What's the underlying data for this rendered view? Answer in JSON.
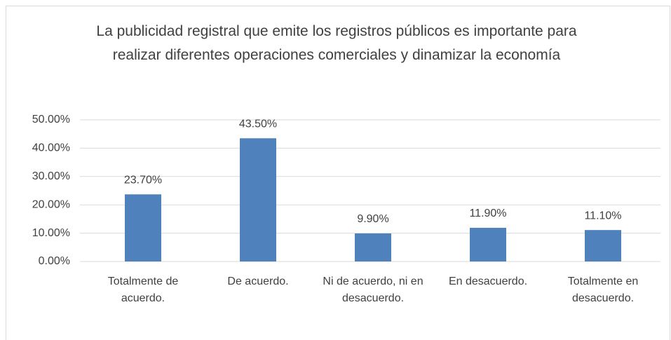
{
  "chart_data": {
    "type": "bar",
    "title": "La publicidad registral que emite los registros públicos es importante para realizar diferentes operaciones comerciales y dinamizar la economía",
    "categories": [
      "Totalmente de acuerdo.",
      "De acuerdo.",
      "Ni de acuerdo, ni en desacuerdo.",
      "En desacuerdo.",
      "Totalmente en desacuerdo."
    ],
    "values": [
      23.7,
      43.5,
      9.9,
      11.9,
      11.1
    ],
    "value_labels": [
      "23.70%",
      "43.50%",
      "9.90%",
      "11.90%",
      "11.10%"
    ],
    "color": "#4f81bd",
    "ylim": [
      0,
      50
    ],
    "yticks": [
      {
        "value": 0,
        "label": "0.00%"
      },
      {
        "value": 10,
        "label": "10.00%"
      },
      {
        "value": 20,
        "label": "20.00%"
      },
      {
        "value": 30,
        "label": "30.00%"
      },
      {
        "value": 40,
        "label": "40.00%"
      },
      {
        "value": 50,
        "label": "50.00%"
      }
    ],
    "grid": true
  }
}
